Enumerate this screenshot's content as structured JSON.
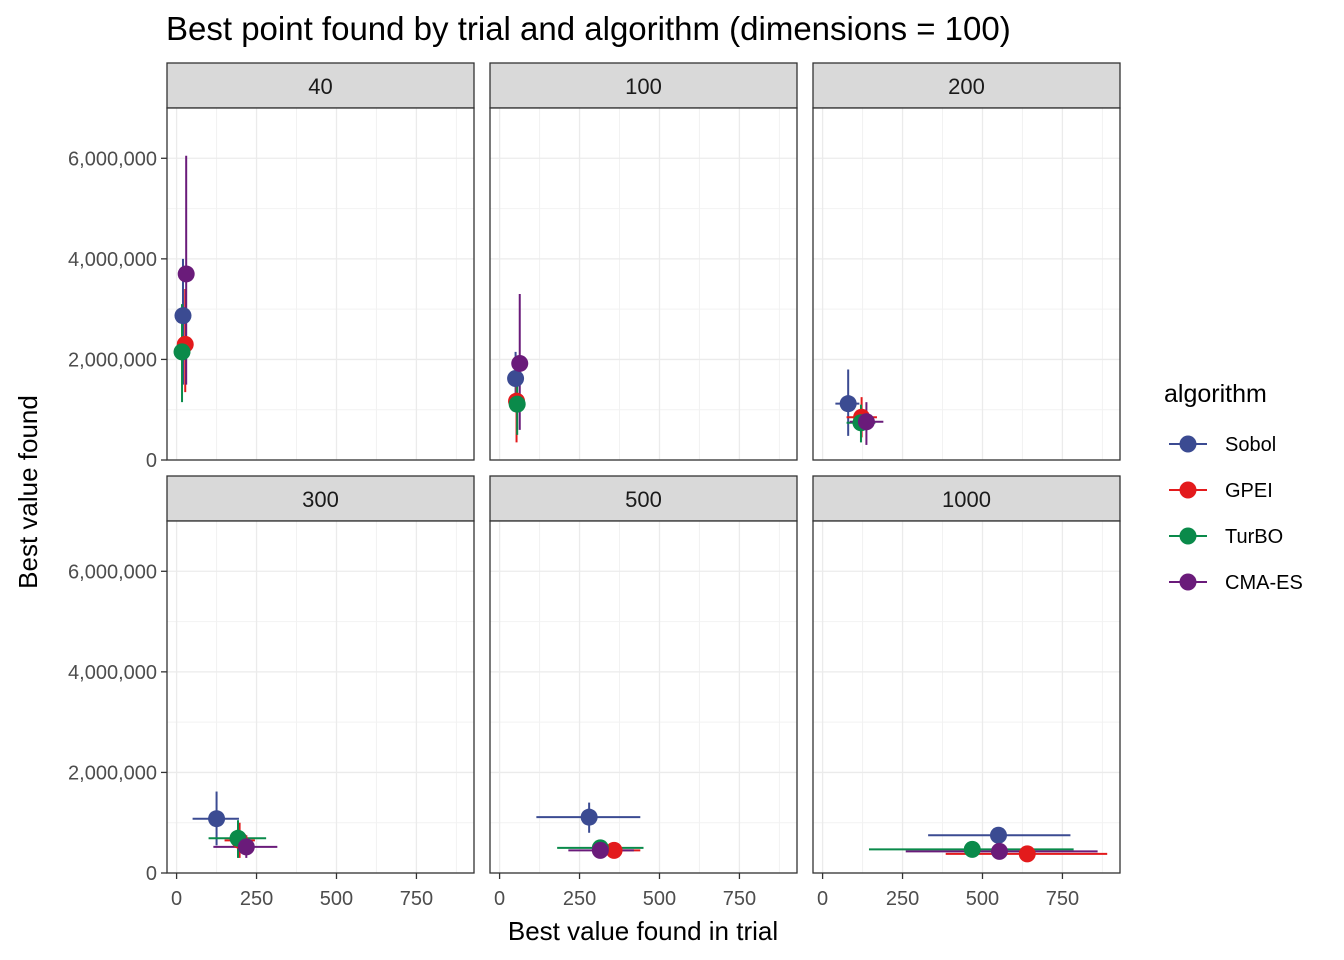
{
  "chart_data": {
    "type": "scatter",
    "title": "Best point found by trial and algorithm (dimensions = 100)",
    "xlabel": "Best value found in trial",
    "ylabel": "Best value found",
    "xlim": [
      -30,
      930
    ],
    "ylim": [
      0,
      7000000
    ],
    "x_ticks": [
      0,
      250,
      500,
      750
    ],
    "x_tick_labels": [
      "0",
      "250",
      "500",
      "750"
    ],
    "y_ticks": [
      0,
      2000000,
      4000000,
      6000000
    ],
    "y_tick_labels": [
      "0",
      "2,000,000",
      "4,000,000",
      "6,000,000"
    ],
    "grid": true,
    "legend": {
      "title": "algorithm",
      "position": "right",
      "entries": [
        "Sobol",
        "GPEI",
        "TurBO",
        "CMA-ES"
      ]
    },
    "series_colors": {
      "Sobol": "#3B4B92",
      "GPEI": "#E31A1C",
      "TurBO": "#0A8A4A",
      "CMA-ES": "#6A1B7A"
    },
    "panels": [
      {
        "label": "40",
        "points": [
          {
            "series": "Sobol",
            "x": 20,
            "y": 2870000,
            "x_err": [
              15,
              25
            ],
            "y_err": [
              1500000,
              4000000
            ]
          },
          {
            "series": "GPEI",
            "x": 27,
            "y": 2300000,
            "x_err": [
              20,
              34
            ],
            "y_err": [
              1350000,
              3400000
            ]
          },
          {
            "series": "TurBO",
            "x": 17,
            "y": 2150000,
            "x_err": [
              12,
              22
            ],
            "y_err": [
              1150000,
              3100000
            ]
          },
          {
            "series": "CMA-ES",
            "x": 30,
            "y": 3700000,
            "x_err": [
              25,
              35
            ],
            "y_err": [
              1500000,
              6050000
            ]
          }
        ]
      },
      {
        "label": "100",
        "points": [
          {
            "series": "Sobol",
            "x": 50,
            "y": 1620000,
            "x_err": [
              45,
              56
            ],
            "y_err": [
              1100000,
              2150000
            ]
          },
          {
            "series": "GPEI",
            "x": 53,
            "y": 1170000,
            "x_err": [
              48,
              58
            ],
            "y_err": [
              350000,
              2000000
            ]
          },
          {
            "series": "TurBO",
            "x": 55,
            "y": 1110000,
            "x_err": [
              50,
              60
            ],
            "y_err": [
              500000,
              1700000
            ]
          },
          {
            "series": "CMA-ES",
            "x": 63,
            "y": 1920000,
            "x_err": [
              58,
              68
            ],
            "y_err": [
              600000,
              3300000
            ]
          }
        ]
      },
      {
        "label": "200",
        "points": [
          {
            "series": "Sobol",
            "x": 80,
            "y": 1120000,
            "x_err": [
              40,
              115
            ],
            "y_err": [
              480000,
              1800000
            ]
          },
          {
            "series": "GPEI",
            "x": 122,
            "y": 850000,
            "x_err": [
              75,
              170
            ],
            "y_err": [
              450000,
              1250000
            ]
          },
          {
            "series": "TurBO",
            "x": 120,
            "y": 740000,
            "x_err": [
              75,
              165
            ],
            "y_err": [
              350000,
              1100000
            ]
          },
          {
            "series": "CMA-ES",
            "x": 137,
            "y": 760000,
            "x_err": [
              85,
              190
            ],
            "y_err": [
              300000,
              1150000
            ]
          }
        ]
      },
      {
        "label": "300",
        "points": [
          {
            "series": "Sobol",
            "x": 125,
            "y": 1080000,
            "x_err": [
              50,
              195
            ],
            "y_err": [
              550000,
              1620000
            ]
          },
          {
            "series": "GPEI",
            "x": 197,
            "y": 650000,
            "x_err": [
              150,
              245
            ],
            "y_err": [
              300000,
              1000000
            ]
          },
          {
            "series": "TurBO",
            "x": 192,
            "y": 690000,
            "x_err": [
              100,
              280
            ],
            "y_err": [
              300000,
              1050000
            ]
          },
          {
            "series": "CMA-ES",
            "x": 218,
            "y": 520000,
            "x_err": [
              115,
              315
            ],
            "y_err": [
              300000,
              750000
            ]
          }
        ]
      },
      {
        "label": "500",
        "points": [
          {
            "series": "Sobol",
            "x": 280,
            "y": 1110000,
            "x_err": [
              115,
              440
            ],
            "y_err": [
              800000,
              1400000
            ]
          },
          {
            "series": "GPEI",
            "x": 358,
            "y": 450000,
            "x_err": [
              290,
              440
            ],
            "y_err": [
              380000,
              520000
            ]
          },
          {
            "series": "TurBO",
            "x": 315,
            "y": 500000,
            "x_err": [
              180,
              450
            ],
            "y_err": [
              420000,
              580000
            ]
          },
          {
            "series": "CMA-ES",
            "x": 315,
            "y": 450000,
            "x_err": [
              215,
              420
            ],
            "y_err": [
              380000,
              520000
            ]
          }
        ]
      },
      {
        "label": "1000",
        "points": [
          {
            "series": "Sobol",
            "x": 550,
            "y": 750000,
            "x_err": [
              330,
              775
            ],
            "y_err": [
              620000,
              880000
            ]
          },
          {
            "series": "GPEI",
            "x": 640,
            "y": 380000,
            "x_err": [
              385,
              890
            ],
            "y_err": [
              300000,
              460000
            ]
          },
          {
            "series": "TurBO",
            "x": 468,
            "y": 470000,
            "x_err": [
              145,
              785
            ],
            "y_err": [
              400000,
              540000
            ]
          },
          {
            "series": "CMA-ES",
            "x": 553,
            "y": 430000,
            "x_err": [
              260,
              860
            ],
            "y_err": [
              360000,
              500000
            ]
          }
        ]
      }
    ]
  }
}
